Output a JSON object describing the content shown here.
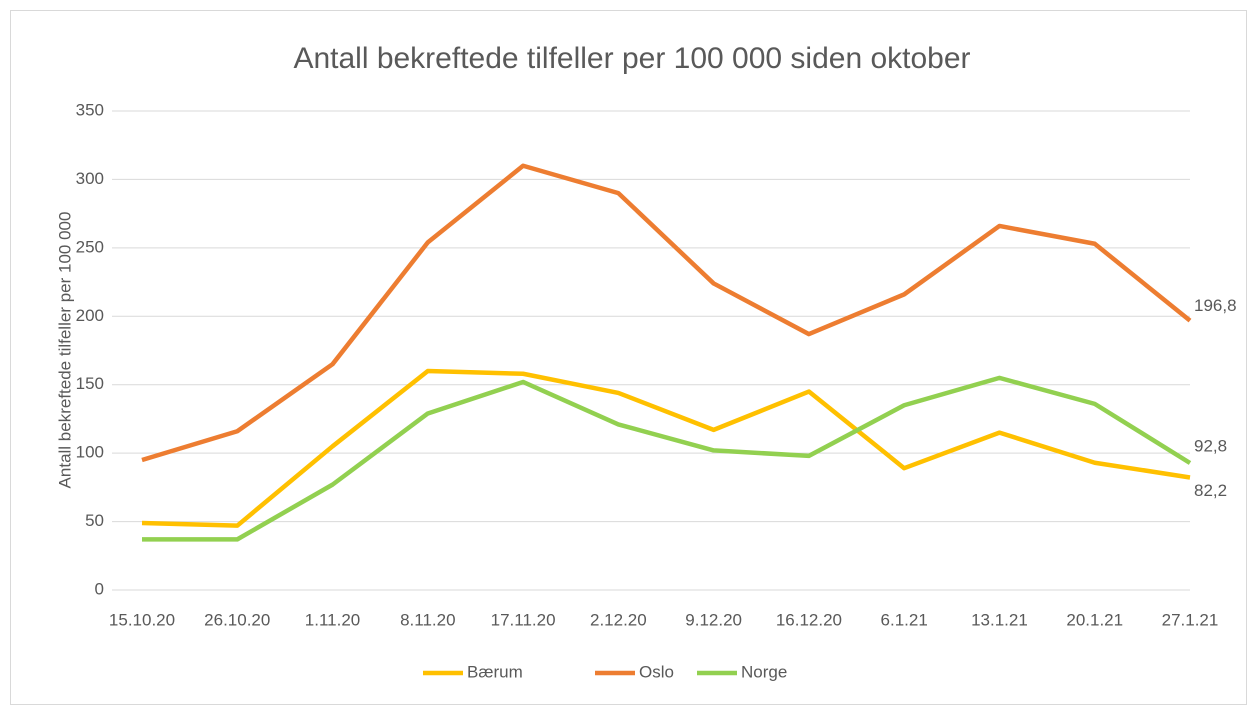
{
  "chart_data": {
    "type": "line",
    "title": "Antall bekreftede tilfeller per 100 000 siden oktober",
    "y_label": "Antall bekreftede tilfeller per 100 000",
    "categories": [
      "15.10.20",
      "26.10.20",
      "1.11.20",
      "8.11.20",
      "17.11.20",
      "2.12.20",
      "9.12.20",
      "16.12.20",
      "6.1.21",
      "13.1.21",
      "20.1.21",
      "27.1.21"
    ],
    "series": [
      {
        "name": "Bærum",
        "color": "#ffc000",
        "values": [
          49,
          47,
          105,
          160,
          158,
          144,
          117,
          145,
          89,
          115,
          93,
          82.2
        ],
        "value_labels": [
          null,
          null,
          null,
          null,
          null,
          null,
          null,
          null,
          null,
          null,
          null,
          "82,2"
        ]
      },
      {
        "name": "Oslo",
        "color": "#ed7d31",
        "values": [
          95,
          116,
          165,
          254,
          310,
          290,
          224,
          187,
          216,
          266,
          253,
          196.8
        ],
        "value_labels": [
          null,
          null,
          null,
          null,
          null,
          null,
          null,
          null,
          null,
          null,
          null,
          "196,8"
        ]
      },
      {
        "name": "Norge",
        "color": "#92d050",
        "values": [
          37,
          37,
          77,
          129,
          152,
          121,
          102,
          98,
          135,
          155,
          136,
          92.8
        ],
        "value_labels": [
          null,
          null,
          null,
          null,
          null,
          null,
          null,
          null,
          null,
          null,
          null,
          "92,8"
        ]
      }
    ],
    "ylim": [
      0,
      350
    ],
    "yticks": [
      0,
      50,
      100,
      150,
      200,
      250,
      300,
      350
    ],
    "grid": true,
    "legend": "bottom"
  }
}
